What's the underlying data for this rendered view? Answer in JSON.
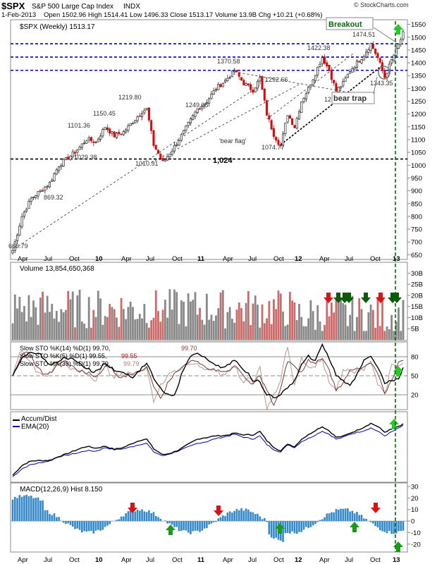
{
  "header": {
    "symbol": "$SPX",
    "name": "S&P 500 Large Cap Index",
    "exchange": "INDX",
    "date": "1-Feb-2013",
    "ohlc": "Open 1502.96  High 1514.41  Low 1496.33  Close 1513.17  Volume 13.9B  Chg +10.21 (+0.68%)",
    "watermark": "© StockCharts.com",
    "series_label": "$SPX (Weekly) 1513.17"
  },
  "colors": {
    "up_candle": "#222222",
    "down_candle": "#cc1111",
    "resistance": "#0000cc",
    "support": "#000000",
    "trend": "#555555",
    "volume_up": "#888888",
    "volume_down": "#cc6a6a",
    "arrow_up": "#1a9a1a",
    "arrow_down": "#dd1111",
    "dark_green_arrow": "#0a5a0a",
    "stoch_fast": "#000000",
    "stoch_mid": "#7a3a30",
    "stoch_slow": "#b49a94",
    "accum": "#000000",
    "ema": "#0000aa",
    "macd_hist": "#3388cc",
    "breakout_line": "#0a6a0a"
  },
  "x_axis_labels": [
    "Apr",
    "Jul",
    "Oct",
    "10",
    "Apr",
    "Jul",
    "Oct",
    "11",
    "Apr",
    "Jul",
    "Oct",
    "12",
    "Apr",
    "Jul",
    "Oct",
    "13"
  ],
  "price_panel": {
    "y_ticks": [
      "1550",
      "1500",
      "1450",
      "1400",
      "1350",
      "1300",
      "1250",
      "1200",
      "1150",
      "1100",
      "1050",
      "1000",
      "950",
      "900",
      "850",
      "800",
      "750",
      "700",
      "650"
    ],
    "annotations": [
      {
        "text": "666.79"
      },
      {
        "text": "869.32"
      },
      {
        "text": "1029.38"
      },
      {
        "text": "1101.36"
      },
      {
        "text": "1150.45"
      },
      {
        "text": "1219.80"
      },
      {
        "text": "1010.91"
      },
      {
        "text": "1249.05"
      },
      {
        "text": "1370.58"
      },
      {
        "text": "1292.66"
      },
      {
        "text": "'bear flag'"
      },
      {
        "text": "1074.77"
      },
      {
        "text": "1,024"
      },
      {
        "text": "1422.38"
      },
      {
        "text": "1474.51"
      },
      {
        "text": "1343.35"
      },
      {
        "text": "12"
      },
      {
        "text": "bear trap"
      },
      {
        "text": "Breakout"
      }
    ]
  },
  "volume_panel": {
    "label": "Volume 13,854,650,368",
    "y_ticks": [
      "30B",
      "25B",
      "20B",
      "15B",
      "10B",
      "5B"
    ]
  },
  "stoch_panel": {
    "line1": "Slow STO %K(14) %D(1) 99.70,",
    "line1_val": "99.70",
    "line2": "Slow STO %K(5) %D(1) 99.55,",
    "line2_val": "99.55",
    "line3": "Slow STO %K(39) %D(1) 99.79,",
    "line3_val": "99.79",
    "y_ticks": [
      "80",
      "50",
      "20"
    ]
  },
  "ad_panel": {
    "line1": "Accum/Dist",
    "line2": "EMA(20)"
  },
  "macd_panel": {
    "label": "MACD(12,26,9) Hist 8.150",
    "y_ticks": [
      "30",
      "20",
      "10",
      "0",
      "-10",
      "-20"
    ]
  },
  "chart_data": {
    "type": "candlestick",
    "title": "$SPX S&P 500 Large Cap Index INDX (Weekly)",
    "xlabel": "",
    "ylabel": "",
    "ylim": [
      640,
      1560
    ],
    "grid": false,
    "legend": "top-left",
    "series": [
      {
        "name": "$SPX (Weekly)",
        "anchors": [
          {
            "x": 0,
            "y": 667
          },
          {
            "x": 4,
            "y": 800
          },
          {
            "x": 8,
            "y": 870
          },
          {
            "x": 12,
            "y": 900
          },
          {
            "x": 16,
            "y": 930
          },
          {
            "x": 20,
            "y": 1000
          },
          {
            "x": 24,
            "y": 1029
          },
          {
            "x": 28,
            "y": 1060
          },
          {
            "x": 32,
            "y": 1101
          },
          {
            "x": 36,
            "y": 1090
          },
          {
            "x": 40,
            "y": 1150
          },
          {
            "x": 44,
            "y": 1115
          },
          {
            "x": 48,
            "y": 1130
          },
          {
            "x": 52,
            "y": 1170
          },
          {
            "x": 56,
            "y": 1210
          },
          {
            "x": 58,
            "y": 1219.8
          },
          {
            "x": 61,
            "y": 1080
          },
          {
            "x": 65,
            "y": 1011
          },
          {
            "x": 69,
            "y": 1060
          },
          {
            "x": 72,
            "y": 1100
          },
          {
            "x": 76,
            "y": 1160
          },
          {
            "x": 80,
            "y": 1220
          },
          {
            "x": 84,
            "y": 1249
          },
          {
            "x": 88,
            "y": 1300
          },
          {
            "x": 92,
            "y": 1330
          },
          {
            "x": 96,
            "y": 1370.6
          },
          {
            "x": 100,
            "y": 1320
          },
          {
            "x": 104,
            "y": 1293
          },
          {
            "x": 107,
            "y": 1340
          },
          {
            "x": 110,
            "y": 1200
          },
          {
            "x": 113,
            "y": 1120
          },
          {
            "x": 116,
            "y": 1075
          },
          {
            "x": 119,
            "y": 1200
          },
          {
            "x": 122,
            "y": 1150
          },
          {
            "x": 125,
            "y": 1250
          },
          {
            "x": 128,
            "y": 1300
          },
          {
            "x": 131,
            "y": 1360
          },
          {
            "x": 134,
            "y": 1422.4
          },
          {
            "x": 137,
            "y": 1370
          },
          {
            "x": 140,
            "y": 1290
          },
          {
            "x": 143,
            "y": 1320
          },
          {
            "x": 146,
            "y": 1370
          },
          {
            "x": 149,
            "y": 1400
          },
          {
            "x": 152,
            "y": 1430
          },
          {
            "x": 155,
            "y": 1474.5
          },
          {
            "x": 158,
            "y": 1420
          },
          {
            "x": 161,
            "y": 1343
          },
          {
            "x": 164,
            "y": 1410
          },
          {
            "x": 167,
            "y": 1470
          },
          {
            "x": 169,
            "y": 1513.2
          }
        ]
      }
    ],
    "levels": [
      {
        "name": "resistance",
        "y": 1474.5
      },
      {
        "name": "resistance",
        "y": 1422.4
      },
      {
        "name": "resistance",
        "y": 1370.6
      },
      {
        "name": "support",
        "y": 1024
      }
    ]
  }
}
